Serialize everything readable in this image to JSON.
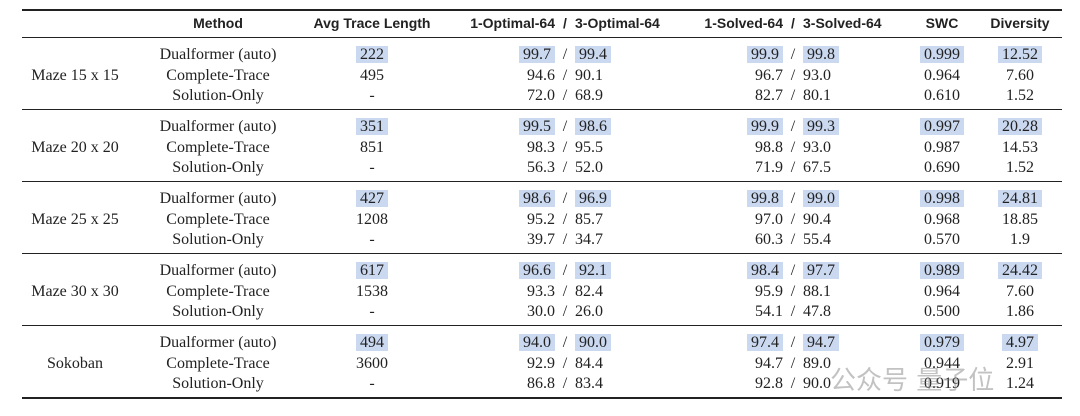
{
  "header": {
    "method": "Method",
    "trace": "Avg Trace Length",
    "optimal_1": "1-Optimal-64",
    "optimal_3": "3-Optimal-64",
    "solved_1": "1-Solved-64",
    "solved_3": "3-Solved-64",
    "swc": "SWC",
    "diversity": "Diversity"
  },
  "separator": "/",
  "groups": [
    {
      "label": "Maze 15 x 15",
      "rows": [
        {
          "method": "Dualformer (auto)",
          "trace": "222",
          "optimal_1": "99.7",
          "optimal_3": "99.4",
          "solved_1": "99.9",
          "solved_3": "99.8",
          "swc": "0.999",
          "diversity": "12.52",
          "highlight": true
        },
        {
          "method": "Complete-Trace",
          "trace": "495",
          "optimal_1": "94.6",
          "optimal_3": "90.1",
          "solved_1": "96.7",
          "solved_3": "93.0",
          "swc": "0.964",
          "diversity": "7.60",
          "highlight": false
        },
        {
          "method": "Solution-Only",
          "trace": "-",
          "optimal_1": "72.0",
          "optimal_3": "68.9",
          "solved_1": "82.7",
          "solved_3": "80.1",
          "swc": "0.610",
          "diversity": "1.52",
          "highlight": false
        }
      ]
    },
    {
      "label": "Maze 20 x 20",
      "rows": [
        {
          "method": "Dualformer (auto)",
          "trace": "351",
          "optimal_1": "99.5",
          "optimal_3": "98.6",
          "solved_1": "99.9",
          "solved_3": "99.3",
          "swc": "0.997",
          "diversity": "20.28",
          "highlight": true
        },
        {
          "method": "Complete-Trace",
          "trace": "851",
          "optimal_1": "98.3",
          "optimal_3": "95.5",
          "solved_1": "98.8",
          "solved_3": "93.0",
          "swc": "0.987",
          "diversity": "14.53",
          "highlight": false
        },
        {
          "method": "Solution-Only",
          "trace": "-",
          "optimal_1": "56.3",
          "optimal_3": "52.0",
          "solved_1": "71.9",
          "solved_3": "67.5",
          "swc": "0.690",
          "diversity": "1.52",
          "highlight": false
        }
      ]
    },
    {
      "label": "Maze 25 x 25",
      "rows": [
        {
          "method": "Dualformer (auto)",
          "trace": "427",
          "optimal_1": "98.6",
          "optimal_3": "96.9",
          "solved_1": "99.8",
          "solved_3": "99.0",
          "swc": "0.998",
          "diversity": "24.81",
          "highlight": true
        },
        {
          "method": "Complete-Trace",
          "trace": "1208",
          "optimal_1": "95.2",
          "optimal_3": "85.7",
          "solved_1": "97.0",
          "solved_3": "90.4",
          "swc": "0.968",
          "diversity": "18.85",
          "highlight": false
        },
        {
          "method": "Solution-Only",
          "trace": "-",
          "optimal_1": "39.7",
          "optimal_3": "34.7",
          "solved_1": "60.3",
          "solved_3": "55.4",
          "swc": "0.570",
          "diversity": "1.9",
          "highlight": false
        }
      ]
    },
    {
      "label": "Maze 30 x 30",
      "rows": [
        {
          "method": "Dualformer (auto)",
          "trace": "617",
          "optimal_1": "96.6",
          "optimal_3": "92.1",
          "solved_1": "98.4",
          "solved_3": "97.7",
          "swc": "0.989",
          "diversity": "24.42",
          "highlight": true
        },
        {
          "method": "Complete-Trace",
          "trace": "1538",
          "optimal_1": "93.3",
          "optimal_3": "82.4",
          "solved_1": "95.9",
          "solved_3": "88.1",
          "swc": "0.964",
          "diversity": "7.60",
          "highlight": false
        },
        {
          "method": "Solution-Only",
          "trace": "-",
          "optimal_1": "30.0",
          "optimal_3": "26.0",
          "solved_1": "54.1",
          "solved_3": "47.8",
          "swc": "0.500",
          "diversity": "1.86",
          "highlight": false
        }
      ]
    },
    {
      "label": "Sokoban",
      "rows": [
        {
          "method": "Dualformer (auto)",
          "trace": "494",
          "optimal_1": "94.0",
          "optimal_3": "90.0",
          "solved_1": "97.4",
          "solved_3": "94.7",
          "swc": "0.979",
          "diversity": "4.97",
          "highlight": true
        },
        {
          "method": "Complete-Trace",
          "trace": "3600",
          "optimal_1": "92.9",
          "optimal_3": "84.4",
          "solved_1": "94.7",
          "solved_3": "89.0",
          "swc": "0.944",
          "diversity": "2.91",
          "highlight": false
        },
        {
          "method": "Solution-Only",
          "trace": "-",
          "optimal_1": "86.8",
          "optimal_3": "83.4",
          "solved_1": "92.8",
          "solved_3": "90.0",
          "swc": "0.919",
          "diversity": "1.24",
          "highlight": false
        }
      ]
    }
  ],
  "watermark": "公众号 量子位"
}
